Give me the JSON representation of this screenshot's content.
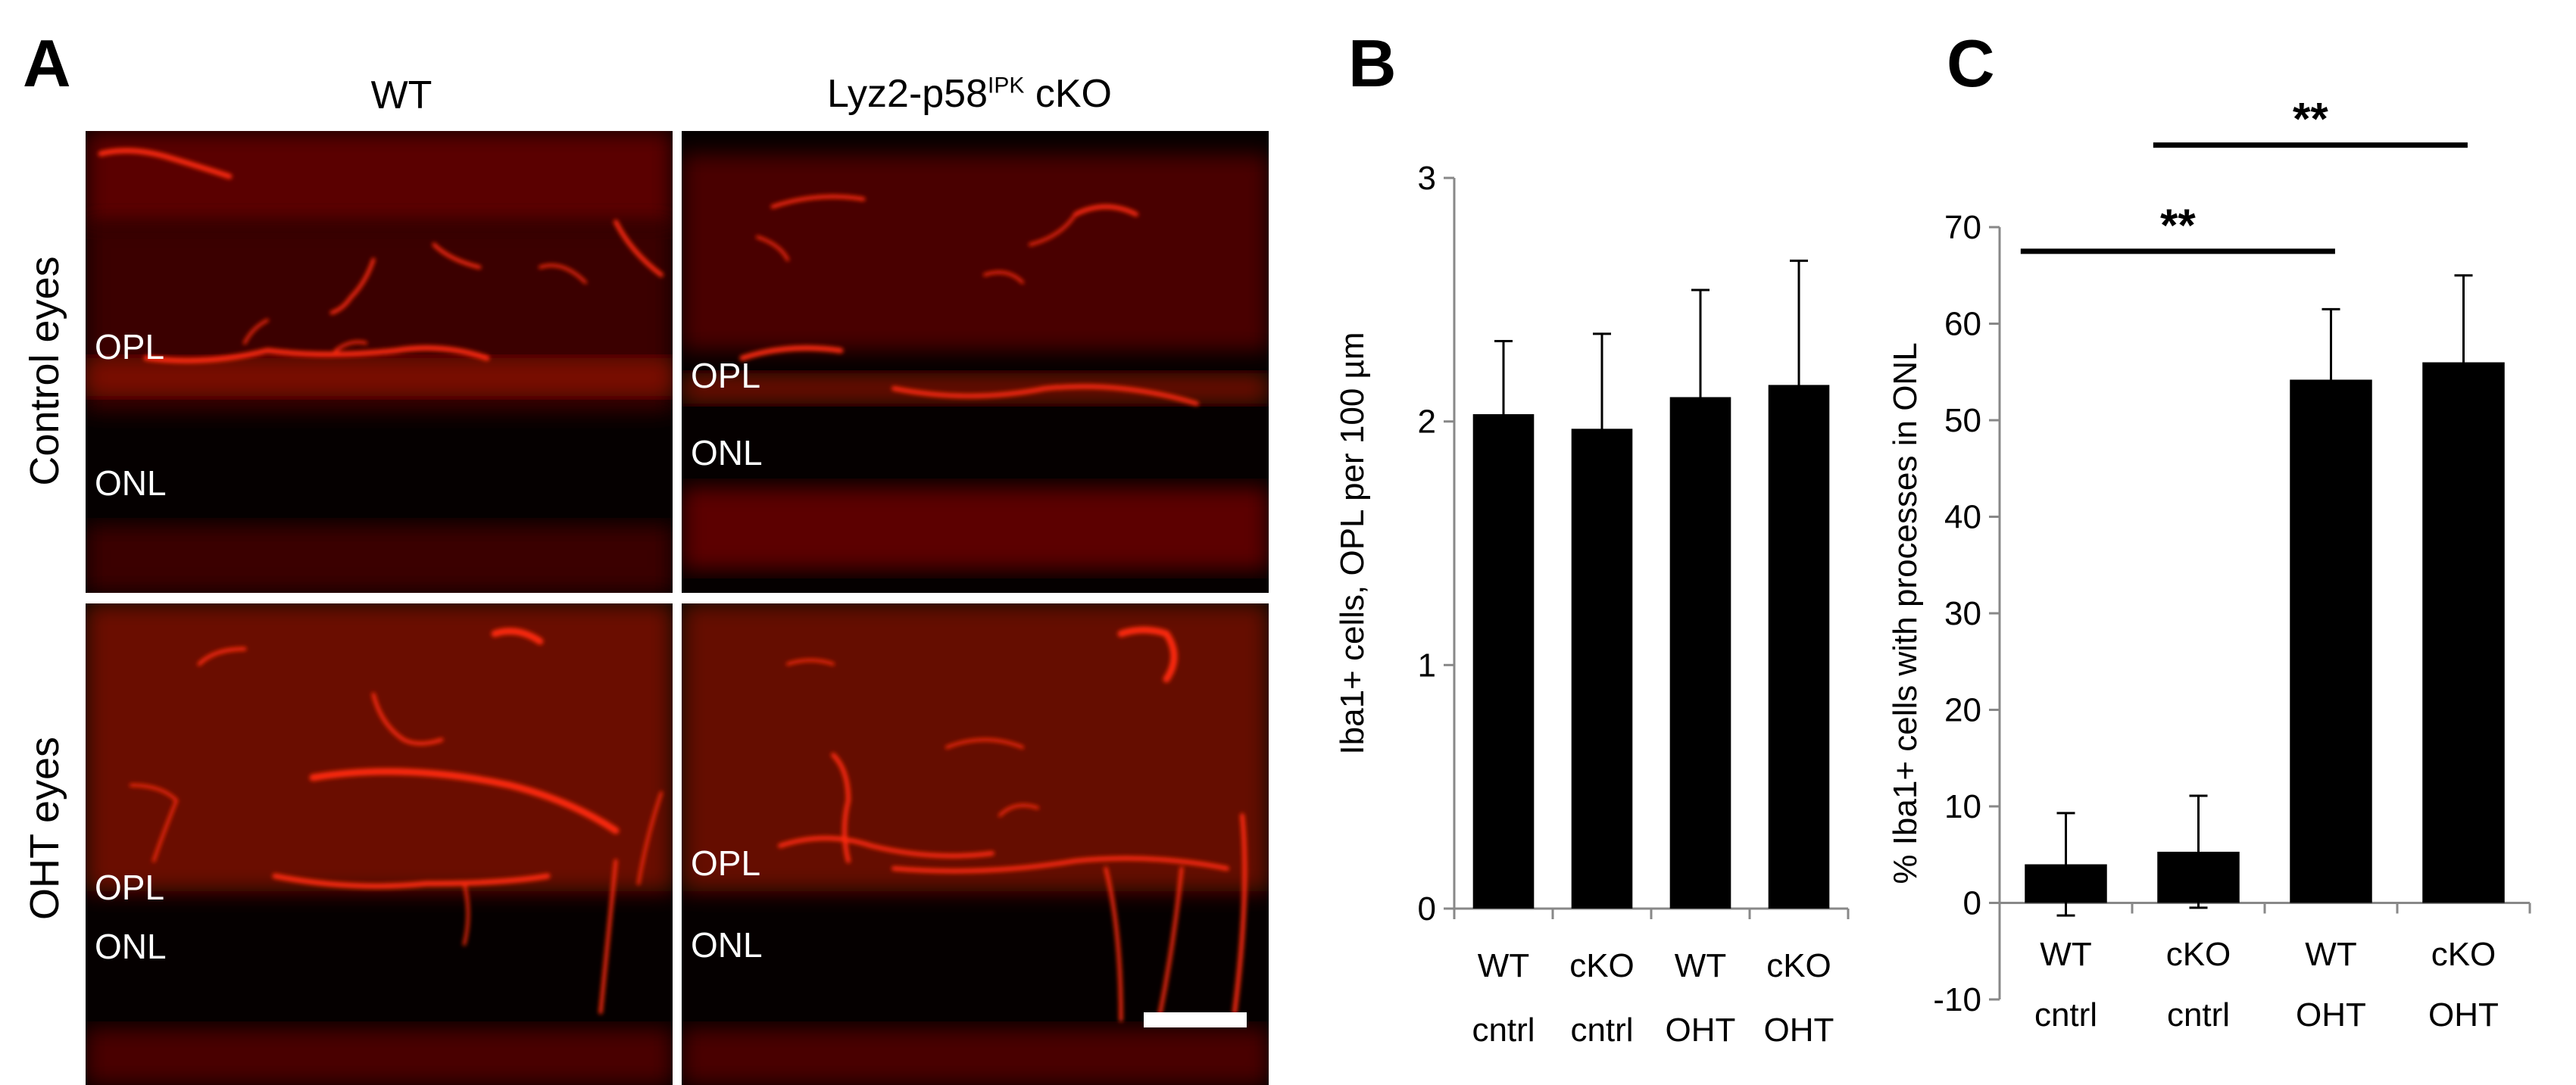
{
  "panelA": {
    "letter": "A",
    "col_headers": {
      "wt": "WT",
      "cko_base": "Lyz2-p58",
      "cko_sup": "IPK",
      "cko_tail": " cKO"
    },
    "row_labels": {
      "control": "Control eyes",
      "oht": "OHT eyes"
    },
    "layers": {
      "opl": "OPL",
      "onl": "ONL"
    },
    "stain_color": "#ff1a0a",
    "background_color": "#050000"
  },
  "panelB": {
    "letter": "B",
    "chart_data": {
      "type": "bar",
      "ylabel": "Iba1+ cells, OPL per 100 µm",
      "xlabel": "",
      "ylim": [
        0,
        3
      ],
      "yticks": [
        0,
        1,
        2,
        3
      ],
      "categories": [
        [
          "WT",
          "cntrl"
        ],
        [
          "cKO",
          "cntrl"
        ],
        [
          "WT",
          "OHT"
        ],
        [
          "cKO",
          "OHT"
        ]
      ],
      "values": [
        2.03,
        1.97,
        2.1,
        2.15
      ],
      "errors": [
        0.3,
        0.39,
        0.44,
        0.51
      ],
      "bar_color": "#000000"
    }
  },
  "panelC": {
    "letter": "C",
    "chart_data": {
      "type": "bar",
      "ylabel": "% Iba1+ cells with processes  in ONL",
      "xlabel": "",
      "ylim": [
        -10,
        70
      ],
      "yticks": [
        -10,
        0,
        10,
        20,
        30,
        40,
        50,
        60,
        70
      ],
      "categories": [
        [
          "WT",
          "cntrl"
        ],
        [
          "cKO",
          "cntrl"
        ],
        [
          "WT",
          "OHT"
        ],
        [
          "cKO",
          "OHT"
        ]
      ],
      "values": [
        4,
        5.3,
        54.2,
        56
      ],
      "errors": [
        5.3,
        5.8,
        7.3,
        9
      ],
      "bar_color": "#000000",
      "significance": [
        {
          "from": 0,
          "to": 2,
          "label": "**",
          "y": 67.5
        },
        {
          "from": 1,
          "to": 3,
          "label": "**",
          "y": 78.5
        }
      ]
    }
  }
}
